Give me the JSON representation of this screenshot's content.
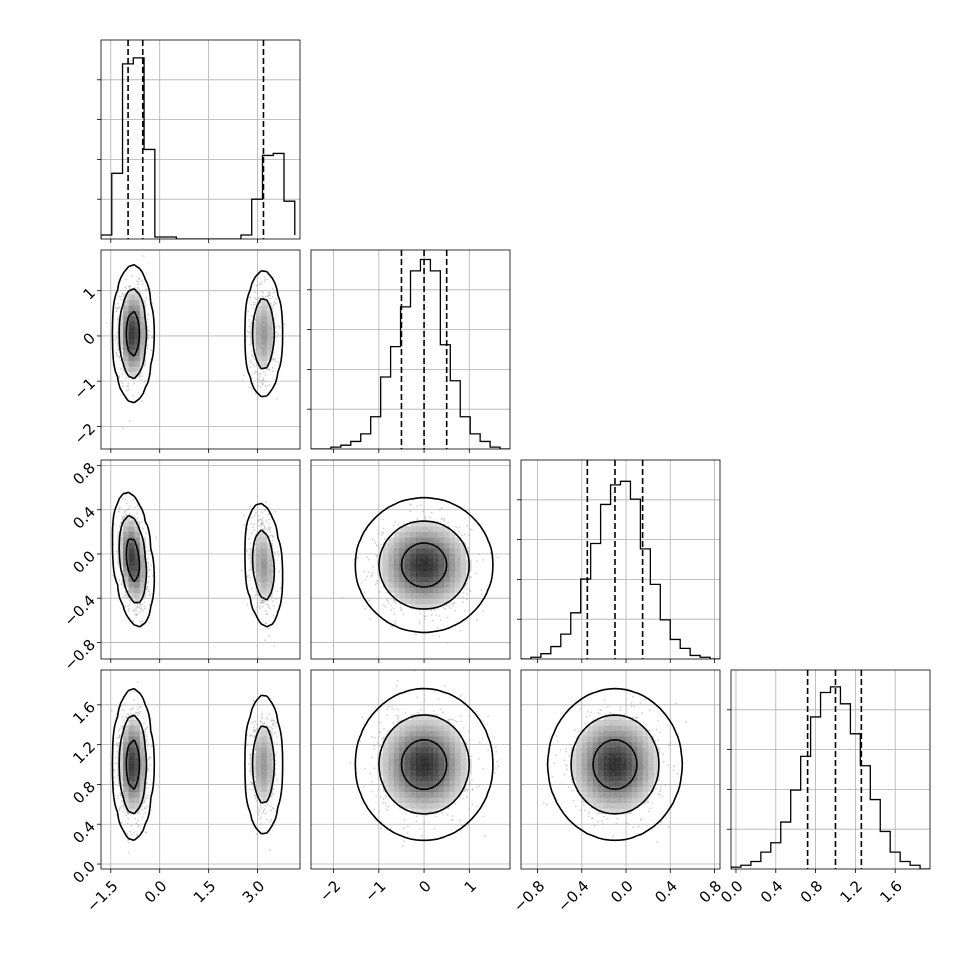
{
  "chart_data": {
    "type": "corner",
    "title": "",
    "grid": true,
    "parameters": [
      {
        "range": [
          -1.8,
          4.3
        ],
        "ticks": [
          -1.5,
          0.0,
          1.5,
          3.0
        ],
        "tick_labels": [
          "−1.5",
          "0.0",
          "1.5",
          "3.0"
        ],
        "quantiles": [
          -0.97,
          -0.52,
          3.18
        ],
        "hist": {
          "edges": [
            -1.8,
            -1.47,
            -1.14,
            -0.81,
            -0.48,
            -0.15,
            0.18,
            0.51,
            0.84,
            1.17,
            1.5,
            1.83,
            2.16,
            2.49,
            2.82,
            3.15,
            3.48,
            3.81,
            4.14
          ],
          "counts": [
            0.02,
            0.33,
            0.88,
            0.91,
            0.45,
            0.01,
            0.01,
            0.0,
            0.0,
            0.0,
            0.0,
            0.0,
            0.0,
            0.02,
            0.2,
            0.42,
            0.43,
            0.19,
            0.02
          ],
          "ylim": [
            0,
            1.0
          ]
        }
      },
      {
        "range": [
          -2.5,
          1.9
        ],
        "ticks": [
          -2,
          -1,
          0,
          1
        ],
        "tick_labels": [
          "−2",
          "−1",
          "0",
          "1"
        ],
        "quantiles": [
          -0.5,
          0.0,
          0.5
        ],
        "hist": {
          "edges": [
            -2.5,
            -2.28,
            -2.06,
            -1.84,
            -1.62,
            -1.4,
            -1.18,
            -0.96,
            -0.74,
            -0.52,
            -0.3,
            -0.08,
            0.14,
            0.36,
            0.58,
            0.8,
            1.02,
            1.24,
            1.46,
            1.68,
            1.9
          ],
          "counts": [
            0.0,
            0.0,
            0.01,
            0.02,
            0.04,
            0.08,
            0.17,
            0.38,
            0.54,
            0.75,
            0.94,
            1.0,
            0.94,
            0.55,
            0.36,
            0.17,
            0.08,
            0.04,
            0.01,
            0.0
          ],
          "ylim": [
            0,
            1.05
          ]
        }
      },
      {
        "range": [
          -0.95,
          0.85
        ],
        "ticks": [
          -0.8,
          -0.4,
          0.0,
          0.4,
          0.8
        ],
        "tick_labels": [
          "−0.8",
          "−0.4",
          "0.0",
          "0.4",
          "0.8"
        ],
        "quantiles": [
          -0.35,
          -0.1,
          0.15
        ],
        "hist": {
          "edges": [
            -0.95,
            -0.86,
            -0.77,
            -0.68,
            -0.59,
            -0.5,
            -0.41,
            -0.32,
            -0.23,
            -0.14,
            -0.05,
            0.04,
            0.13,
            0.22,
            0.31,
            0.4,
            0.49,
            0.58,
            0.67,
            0.76,
            0.85
          ],
          "counts": [
            0.0,
            0.01,
            0.03,
            0.07,
            0.14,
            0.26,
            0.45,
            0.65,
            0.87,
            0.98,
            1.0,
            0.9,
            0.62,
            0.42,
            0.22,
            0.11,
            0.06,
            0.02,
            0.01,
            0.0
          ],
          "ylim": [
            0,
            1.12
          ]
        }
      },
      {
        "range": [
          -0.05,
          1.95
        ],
        "ticks": [
          0.0,
          0.4,
          0.8,
          1.2,
          1.6
        ],
        "tick_labels": [
          "0.0",
          "0.4",
          "0.8",
          "1.2",
          "1.6"
        ],
        "quantiles": [
          0.72,
          1.0,
          1.26
        ],
        "hist": {
          "edges": [
            -0.05,
            0.05,
            0.15,
            0.25,
            0.35,
            0.45,
            0.55,
            0.65,
            0.75,
            0.85,
            0.95,
            1.05,
            1.15,
            1.25,
            1.35,
            1.45,
            1.55,
            1.65,
            1.75,
            1.85,
            1.95
          ],
          "counts": [
            0.01,
            0.02,
            0.04,
            0.09,
            0.14,
            0.25,
            0.42,
            0.6,
            0.81,
            0.94,
            0.97,
            0.88,
            0.72,
            0.55,
            0.37,
            0.2,
            0.09,
            0.04,
            0.02,
            0.0
          ],
          "ylim": [
            0,
            1.06
          ]
        }
      }
    ],
    "pairs": [
      {
        "x": 0,
        "y": 1,
        "blobs": [
          {
            "mx": -0.82,
            "my": 0.05,
            "sx": 0.2,
            "sy": 0.5,
            "w": 1.0,
            "rho": 0.0
          },
          {
            "mx": 3.18,
            "my": 0.05,
            "sx": 0.2,
            "sy": 0.5,
            "w": 0.48,
            "rho": 0.0
          }
        ]
      },
      {
        "x": 0,
        "y": 2,
        "blobs": [
          {
            "mx": -0.82,
            "my": -0.05,
            "sx": 0.2,
            "sy": 0.2,
            "w": 1.0,
            "rho": -0.3
          },
          {
            "mx": 3.18,
            "my": -0.1,
            "sx": 0.2,
            "sy": 0.2,
            "w": 0.48,
            "rho": -0.2
          }
        ]
      },
      {
        "x": 0,
        "y": 3,
        "blobs": [
          {
            "mx": -0.82,
            "my": 1.0,
            "sx": 0.2,
            "sy": 0.25,
            "w": 1.0,
            "rho": 0.0
          },
          {
            "mx": 3.18,
            "my": 1.0,
            "sx": 0.2,
            "sy": 0.25,
            "w": 0.48,
            "rho": 0.0
          }
        ]
      },
      {
        "x": 1,
        "y": 2,
        "blobs": [
          {
            "mx": 0.0,
            "my": -0.1,
            "sx": 0.5,
            "sy": 0.2,
            "w": 1.0,
            "rho": 0.0
          }
        ]
      },
      {
        "x": 1,
        "y": 3,
        "blobs": [
          {
            "mx": 0.0,
            "my": 1.0,
            "sx": 0.5,
            "sy": 0.25,
            "w": 1.0,
            "rho": 0.0
          }
        ]
      },
      {
        "x": 2,
        "y": 3,
        "blobs": [
          {
            "mx": -0.1,
            "my": 1.0,
            "sx": 0.2,
            "sy": 0.25,
            "w": 1.0,
            "rho": 0.0
          }
        ]
      }
    ],
    "contour_levels": [
      0.39,
      0.86,
      0.99
    ],
    "colors": {
      "line": "#000000",
      "points": "#9a9a9a",
      "grid": "#b0b0b0"
    }
  }
}
